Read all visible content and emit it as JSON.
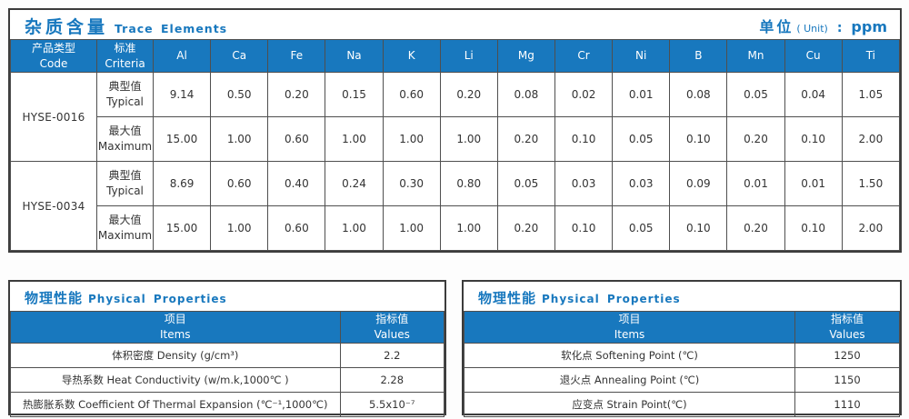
{
  "trace_table": {
    "title_zh": "杂质含量",
    "title_en": "Trace Elements",
    "unit_zh": "单位",
    "unit_sub": "( Unit)",
    "unit_colon": ":",
    "unit_value": "ppm",
    "col_headers": [
      {
        "zh": "产品类型",
        "en": "Code"
      },
      {
        "zh": "标准",
        "en": "Criteria"
      }
    ],
    "elements": [
      "Al",
      "Ca",
      "Fe",
      "Na",
      "K",
      "Li",
      "Mg",
      "Cr",
      "Ni",
      "B",
      "Mn",
      "Cu",
      "Ti"
    ],
    "products": [
      {
        "code": "HYSE-0016",
        "rows": [
          {
            "label_zh": "典型值",
            "label_en": "Typical",
            "values": [
              "9.14",
              "0.50",
              "0.20",
              "0.15",
              "0.60",
              "0.20",
              "0.08",
              "0.02",
              "0.01",
              "0.08",
              "0.05",
              "0.04",
              "1.05"
            ]
          },
          {
            "label_zh": "最大值",
            "label_en": "Maximum",
            "values": [
              "15.00",
              "1.00",
              "0.60",
              "1.00",
              "1.00",
              "1.00",
              "0.20",
              "0.10",
              "0.05",
              "0.10",
              "0.20",
              "0.10",
              "2.00"
            ]
          }
        ]
      },
      {
        "code": "HYSE-0034",
        "rows": [
          {
            "label_zh": "典型值",
            "label_en": "Typical",
            "values": [
              "8.69",
              "0.60",
              "0.40",
              "0.24",
              "0.30",
              "0.80",
              "0.05",
              "0.03",
              "0.03",
              "0.09",
              "0.01",
              "0.01",
              "1.50"
            ]
          },
          {
            "label_zh": "最大值",
            "label_en": "Maximum",
            "values": [
              "15.00",
              "1.00",
              "0.60",
              "1.00",
              "1.00",
              "1.00",
              "0.20",
              "0.10",
              "0.05",
              "0.10",
              "0.20",
              "0.10",
              "2.00"
            ]
          }
        ]
      }
    ]
  },
  "physical_left": {
    "title_zh": "物理性能",
    "title_en": "Physical Properties",
    "header": {
      "items_zh": "项目",
      "items_en": "Items",
      "values_zh": "指标值",
      "values_en": "Values"
    },
    "rows": [
      {
        "item": "体积密度 Density (g/cm³)",
        "value": "2.2"
      },
      {
        "item": "导热系数 Heat Conductivity (w/m.k,1000℃ )",
        "value": "2.28"
      },
      {
        "item": "热膨胀系数 Coefficient Of Thermal Expansion (℃⁻¹,1000℃)",
        "value": "5.5x10⁻⁷"
      }
    ]
  },
  "physical_right": {
    "title_zh": "物理性能",
    "title_en": "Physical Properties",
    "header": {
      "items_zh": "项目",
      "items_en": "Items",
      "values_zh": "指标值",
      "values_en": "Values"
    },
    "rows": [
      {
        "item": "软化点 Softening Point (℃)",
        "value": "1250"
      },
      {
        "item": "退火点 Annealing Point (℃)",
        "value": "1150"
      },
      {
        "item": "应变点 Strain Point(℃)",
        "value": "1110"
      }
    ]
  },
  "colors": {
    "accent_blue": "#1878be",
    "border_dark": "#3c3c3c",
    "grid_line": "#4f4f4f"
  }
}
